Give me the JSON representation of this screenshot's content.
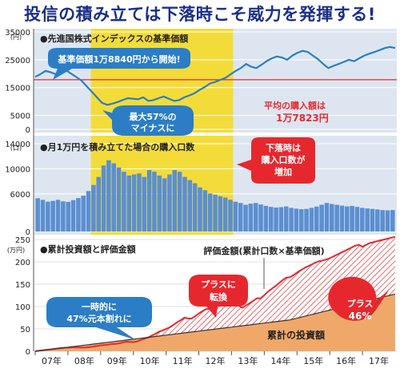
{
  "headline": "投信の積み立ては下落時こそ威力を発揮する!",
  "colors": {
    "panel_bg": "#dde6f0",
    "band_yellow": "#f3dc3a",
    "blue": "#2b7dc6",
    "bar_blue": "#5b8fd1",
    "red": "#e6282e",
    "brown_fill": "#f0a86a",
    "dark": "#222222"
  },
  "chart_data": [
    {
      "type": "line",
      "title": "●先進国株式インデックスの基準価額",
      "yunit": "(円)",
      "ylim": [
        0,
        35000
      ],
      "yticks": [
        "0",
        "5000",
        "15000",
        "25000",
        "35000"
      ],
      "ytick_values": [
        0,
        5000,
        15000,
        25000,
        35000
      ],
      "xlabels": [
        "07年",
        "08年",
        "09年",
        "10年",
        "11年",
        "12年",
        "13年",
        "14年",
        "15年",
        "16年",
        "17年"
      ],
      "series": [
        {
          "values": [
            18840,
            19800,
            21000,
            20500,
            19800,
            20800,
            21200,
            20000,
            18800,
            17500,
            15500,
            13500,
            11500,
            9500,
            8800,
            9200,
            9800,
            10500,
            11200,
            11000,
            10800,
            11500,
            10200,
            10500,
            11200,
            11800,
            11000,
            10200,
            10500,
            11500,
            12200,
            13000,
            14200,
            15200,
            16500,
            17000,
            17800,
            18500,
            19800,
            21000,
            22000,
            23500,
            22500,
            22000,
            23200,
            24500,
            25500,
            26200,
            25800,
            25000,
            26500,
            27500,
            28200,
            27800,
            26500,
            25200,
            23500,
            22000,
            22800,
            23500,
            24200,
            25000,
            24500,
            25500,
            26500,
            27200,
            27800,
            28500,
            29200,
            29600,
            29200
          ]
        }
      ],
      "reference_line": {
        "value": 17823,
        "label": "平均の購入額は",
        "value_label": "1万7823円"
      },
      "annotations": [
        {
          "text": "基準価額1万8840円から開始!"
        },
        {
          "line1": "最大57%の",
          "line2": "マイナスに"
        }
      ]
    },
    {
      "type": "bar",
      "title": "●月1万円を積み立てた場合の購入口数",
      "yunit": "(口)",
      "ylim": [
        0,
        14000
      ],
      "yticks": [
        "0",
        "6000",
        "10000",
        "14000"
      ],
      "ytick_values": [
        0,
        6000,
        10000,
        14000
      ],
      "series": [
        {
          "values": [
            5300,
            5050,
            4760,
            4880,
            5050,
            4810,
            4720,
            5000,
            5320,
            5710,
            6450,
            7410,
            8700,
            10530,
            11360,
            10870,
            10200,
            9520,
            8930,
            9090,
            9260,
            8700,
            9800,
            9520,
            8930,
            8470,
            9090,
            9800,
            9520,
            8700,
            8200,
            7690,
            7040,
            6580,
            6060,
            5880,
            5620,
            5410,
            5050,
            4760,
            4550,
            4260,
            4440,
            4550,
            4310,
            4080,
            3920,
            3820,
            3880,
            4000,
            3770,
            3640,
            3550,
            3600,
            3770,
            3970,
            4260,
            4550,
            4390,
            4260,
            4130,
            4000,
            4080,
            3920,
            3770,
            3680,
            3600,
            3510,
            3420,
            3380,
            3420
          ]
        }
      ],
      "annotation": {
        "line1": "下落時は",
        "line2": "購入口数が",
        "line3": "増加"
      }
    },
    {
      "type": "area",
      "title": "●累計投資額と評価金額",
      "yunit": "(万円)",
      "ylim": [
        0,
        250
      ],
      "yticks": [
        "0",
        "50",
        "100",
        "150",
        "200",
        "250"
      ],
      "ytick_values": [
        0,
        50,
        100,
        150,
        200,
        250
      ],
      "xlabels": [
        "07年",
        "08年",
        "09年",
        "10年",
        "11年",
        "12年",
        "13年",
        "14年",
        "15年",
        "16年",
        "17年"
      ],
      "series": [
        {
          "name": "累計の投資額",
          "values": [
            0,
            1,
            2,
            3,
            4,
            5,
            6,
            7,
            8,
            9,
            10,
            11,
            12,
            13,
            14,
            15,
            16,
            17,
            18,
            19,
            20,
            21,
            22,
            23,
            24,
            25,
            26,
            27,
            28,
            29,
            30,
            31,
            32,
            33,
            34,
            35,
            36,
            37,
            38,
            39,
            40,
            41,
            42,
            43,
            44,
            45,
            46,
            47,
            48,
            49,
            50,
            51,
            52,
            53,
            54,
            55,
            56,
            57,
            58,
            59,
            60,
            61,
            62,
            63,
            64,
            65,
            66,
            67,
            68,
            69,
            70,
            72,
            74,
            76,
            78,
            80,
            82,
            84,
            86,
            88,
            90,
            92,
            94,
            96,
            98,
            100,
            102,
            104,
            106,
            108,
            110,
            112,
            114,
            116,
            118,
            120,
            122,
            124,
            126,
            128
          ]
        },
        {
          "name": "評価金額(累計口数×基準価額)",
          "values": [
            0,
            1,
            2,
            3,
            4,
            5,
            6,
            7,
            7.5,
            8,
            8.5,
            8.6,
            8.5,
            8.2,
            8.6,
            9.4,
            10.5,
            11.8,
            13.2,
            14.0,
            14.6,
            16.5,
            16.2,
            17.4,
            19.5,
            21.3,
            21.0,
            20.4,
            22.0,
            25.2,
            27.8,
            30.7,
            34.9,
            38.5,
            43.5,
            46.2,
            49.9,
            53.6,
            59.0,
            64.6,
            69.1,
            75.2,
            73.4,
            73.0,
            78.5,
            84.5,
            89.8,
            94.2,
            94.8,
            93.6,
            100.7,
            106.5,
            111.4,
            112.6,
            109.6,
            106.5,
            101.7,
            97.2,
            102.5,
            107.6,
            112.9,
            118.6,
            118.3,
            125.6,
            133.0,
            139.4,
            145.3,
            152.0,
            158.8,
            164.4,
            165.3,
            170,
            176,
            181,
            186,
            190,
            194,
            198,
            201,
            203,
            205,
            208,
            212,
            216,
            220,
            224,
            228,
            232,
            236,
            238,
            234,
            238,
            242,
            244,
            246,
            248,
            250,
            252,
            254,
            256
          ]
        }
      ],
      "annotations": [
        {
          "line1": "一時的に",
          "line2": "47%元本割れに"
        },
        {
          "line1": "プラスに",
          "line2": "転換"
        },
        {
          "line1": "プラス",
          "line2": "46%"
        }
      ],
      "value_label": "評価金額(累計口数×基準価額)",
      "area_label": "累計の投資額"
    }
  ]
}
